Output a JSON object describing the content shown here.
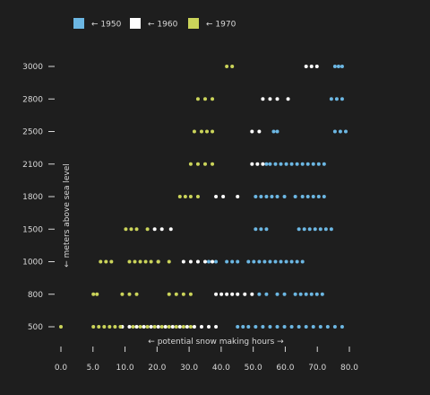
{
  "chart_data": {
    "type": "scatter",
    "xlabel": "potential snow making hours",
    "ylabel": "meters above sea level",
    "xticks": [
      "0.0",
      "5.0",
      "10.0",
      "20.0",
      "30.0",
      "40.0",
      "50.0",
      "60.0",
      "70.0",
      "80.0"
    ],
    "yticks": [
      "500",
      "800",
      "1000",
      "1500",
      "1800",
      "2100",
      "2500",
      "2800",
      "3000"
    ],
    "xlim": [
      0,
      80
    ],
    "legend_position": "top-left",
    "grid": false,
    "series": [
      {
        "name": "1950",
        "color": "#6cb7e3",
        "points": [
          {
            "y": "3000",
            "x": [
              76,
              77,
              78
            ]
          },
          {
            "y": "2800",
            "x": [
              75,
              76.5,
              78
            ]
          },
          {
            "y": "2500",
            "x": [
              59,
              60,
              76,
              77.5,
              79
            ]
          },
          {
            "y": "2100",
            "x": [
              57,
              58,
              59.5,
              61,
              62.5,
              64,
              65.5,
              67,
              68.5,
              70,
              71.5,
              73
            ]
          },
          {
            "y": "1800",
            "x": [
              54,
              55.5,
              57,
              58.5,
              60,
              62,
              65,
              67,
              68.5,
              70,
              71.5,
              73
            ]
          },
          {
            "y": "1500",
            "x": [
              54,
              55.5,
              57,
              66,
              67.5,
              69,
              70.5,
              72,
              73.5,
              75
            ]
          },
          {
            "y": "1000",
            "x": [
              41,
              43,
              46,
              47.5,
              49,
              52,
              53.5,
              55,
              56.5,
              58,
              59.5,
              61,
              62.5,
              64,
              65.5,
              67
            ]
          },
          {
            "y": "800",
            "x": [
              55,
              57,
              60,
              62,
              65,
              66.5,
              68,
              69.5,
              71,
              72.5
            ]
          },
          {
            "y": "500",
            "x": [
              49,
              50.5,
              52,
              54,
              56,
              58,
              60,
              62,
              64,
              66,
              68,
              70,
              72,
              74,
              76,
              78
            ]
          }
        ]
      },
      {
        "name": "1960",
        "color": "#ffffff",
        "points": [
          {
            "y": "3000",
            "x": [
              68,
              69.5,
              71
            ]
          },
          {
            "y": "2800",
            "x": [
              56,
              58,
              60,
              63
            ]
          },
          {
            "y": "2500",
            "x": [
              53,
              55
            ]
          },
          {
            "y": "2100",
            "x": [
              53,
              54.5,
              56
            ]
          },
          {
            "y": "1800",
            "x": [
              43,
              45,
              49
            ]
          },
          {
            "y": "1500",
            "x": [
              26,
              28,
              30.5
            ]
          },
          {
            "y": "1000",
            "x": [
              27,
              34,
              36,
              38,
              40,
              42
            ]
          },
          {
            "y": "800",
            "x": [
              43,
              44.5,
              46,
              47.5,
              49,
              51,
              53
            ]
          },
          {
            "y": "500",
            "x": [
              17,
              19,
              21,
              23,
              25,
              27,
              29,
              31,
              33,
              35,
              37,
              39,
              41,
              43
            ]
          }
        ]
      },
      {
        "name": "1970",
        "color": "#cbd45a",
        "points": [
          {
            "y": "3000",
            "x": [
              46,
              47.5
            ]
          },
          {
            "y": "2800",
            "x": [
              38,
              40,
              42
            ]
          },
          {
            "y": "2500",
            "x": [
              37,
              39,
              40.5,
              42
            ]
          },
          {
            "y": "2100",
            "x": [
              36,
              38,
              40,
              42
            ]
          },
          {
            "y": "1800",
            "x": [
              33,
              34.5,
              36,
              38
            ]
          },
          {
            "y": "1500",
            "x": [
              18,
              19.5,
              21,
              24
            ]
          },
          {
            "y": "1000",
            "x": [
              11,
              12.5,
              14,
              19,
              20.5,
              22,
              23.5,
              25,
              27,
              30
            ]
          },
          {
            "y": "800",
            "x": [
              9,
              10,
              17,
              19,
              21,
              30,
              32,
              34,
              36
            ]
          },
          {
            "y": "500",
            "x": [
              0,
              9,
              10.5,
              12,
              13.5,
              15,
              16.5,
              20,
              22,
              24,
              26,
              28,
              30,
              32,
              34,
              36
            ]
          }
        ]
      }
    ]
  }
}
